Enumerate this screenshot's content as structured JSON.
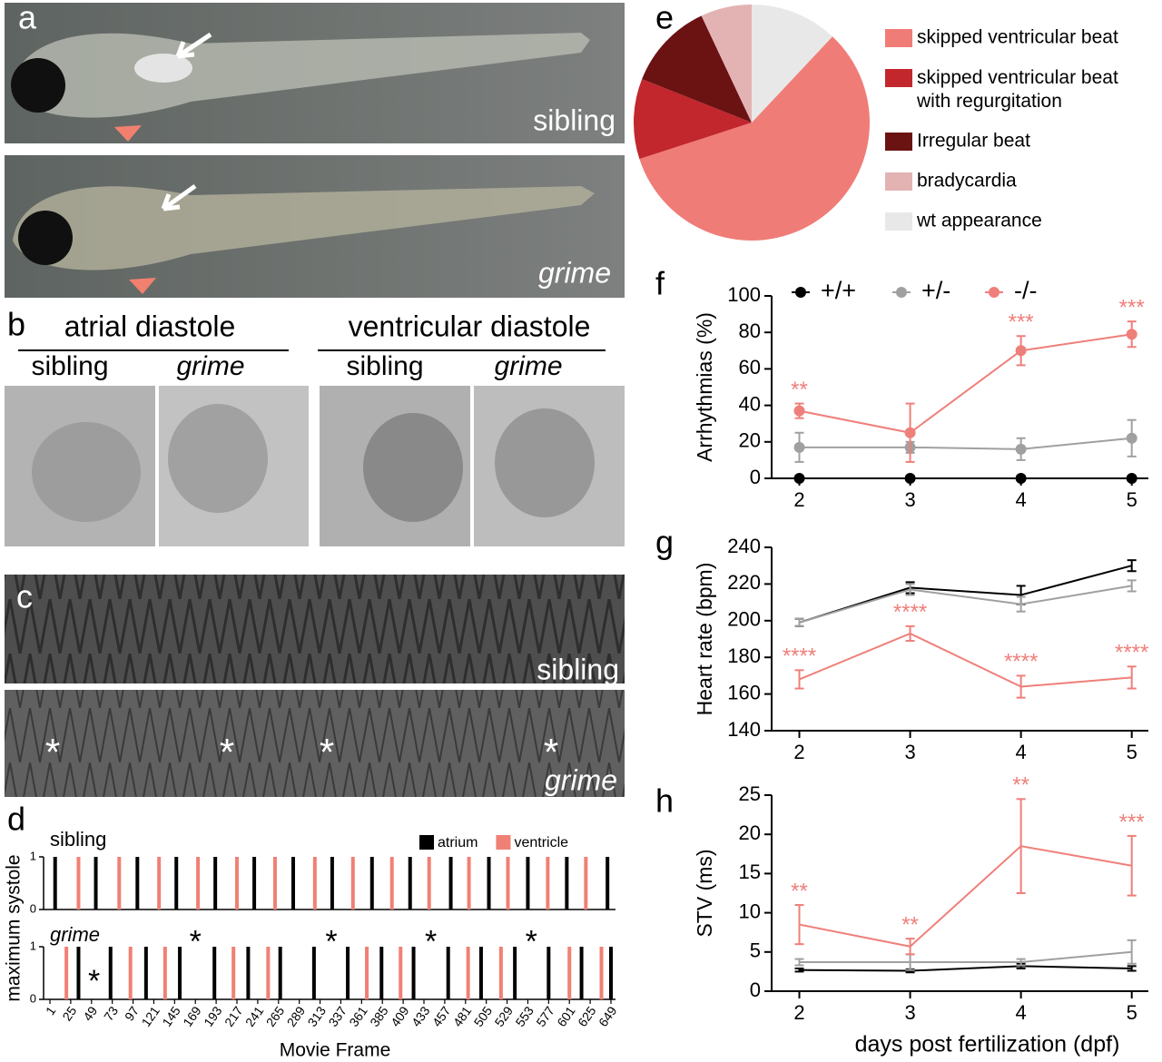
{
  "images": {
    "a": {
      "label": "a",
      "captions": [
        "sibling",
        "grime"
      ]
    },
    "b": {
      "label": "b",
      "groups": [
        {
          "title": "atrial diastole",
          "captions": [
            "sibling",
            "grime"
          ]
        },
        {
          "title": "ventricular diastole",
          "captions": [
            "sibling",
            "grime"
          ]
        }
      ]
    },
    "c": {
      "label": "c",
      "captions": [
        "sibling",
        "grime"
      ],
      "marks": [
        "*",
        "*",
        "*",
        "*"
      ]
    }
  },
  "chart_data": [
    {
      "type": "eventplot",
      "label": "d",
      "ylabel": "maximum systole",
      "xlabel": "Movie Frame",
      "xlim": [
        1,
        649
      ],
      "xticks": [
        1,
        25,
        49,
        73,
        97,
        121,
        145,
        169,
        193,
        217,
        241,
        265,
        289,
        313,
        337,
        361,
        385,
        409,
        433,
        457,
        481,
        505,
        529,
        553,
        577,
        601,
        625,
        649
      ],
      "ylim": [
        0,
        1
      ],
      "yticks": [
        0,
        1
      ],
      "legend": "upper right",
      "series": [
        {
          "name": "atrium",
          "color": "#000000"
        },
        {
          "name": "ventricle",
          "color": "#f08075"
        }
      ],
      "rows": [
        {
          "label": "sibling",
          "events": [
            {
              "x": [
                7,
                54,
                102,
                147,
                192,
                237,
                282,
                327,
                373,
                417,
                464,
                508,
                553,
                598,
                645
              ],
              "values": [
                1,
                1,
                1,
                1,
                1,
                1,
                1,
                1,
                1,
                1,
                1,
                1,
                1,
                1,
                1
              ]
            },
            {
              "x": [
                34,
                81,
                127,
                172,
                217,
                261,
                307,
                351,
                396,
                439,
                485,
                530,
                576,
                620
              ],
              "values": [
                1,
                1,
                1,
                1,
                1,
                1,
                1,
                1,
                1,
                1,
                1,
                1,
                1,
                1
              ]
            }
          ]
        },
        {
          "label": "grime",
          "events": [
            {
              "x": [
                34,
                71,
                112,
                151,
                191,
                230,
                267,
                306,
                345,
                384,
                421,
                461,
                499,
                538,
                577,
                615,
                649
              ],
              "values": [
                1,
                1,
                1,
                1,
                1,
                1,
                1,
                1,
                1,
                1,
                1,
                1,
                1,
                1,
                1,
                1,
                1
              ]
            },
            {
              "x": [
                20,
                94,
                134,
                213,
                253,
                367,
                406,
                484,
                522,
                601,
                638
              ],
              "values": [
                1,
                1,
                1,
                1,
                1,
                1,
                1,
                1,
                1,
                1,
                1
              ]
            }
          ],
          "annotations": [
            {
              "x": 52,
              "y": 0.45,
              "text": "*"
            },
            {
              "x": 169,
              "y": 1.2,
              "text": "*"
            },
            {
              "x": 326,
              "y": 1.2,
              "text": "*"
            },
            {
              "x": 441,
              "y": 1.2,
              "text": "*"
            },
            {
              "x": 557,
              "y": 1.2,
              "text": "*"
            }
          ]
        }
      ]
    },
    {
      "type": "pie",
      "label": "e",
      "startangle": 43.2,
      "legend": "right",
      "categories": [
        "skipped ventricular beat",
        "skipped ventricular beat with regurgitation",
        "Irregular beat",
        "bradycardia",
        "wt appearance"
      ],
      "values": [
        58,
        11,
        12,
        7,
        12
      ],
      "colors": [
        "#f07c78",
        "#c1272d",
        "#6b1213",
        "#e3b3b3",
        "#e8e8e8"
      ]
    },
    {
      "type": "line",
      "label": "f",
      "ylabel": "Arrhythmias (%)",
      "markers": true,
      "legend": "top",
      "x": [
        2,
        3,
        4,
        5
      ],
      "xlim": [
        1.75,
        5.15
      ],
      "xticks": [
        2,
        3,
        4,
        5
      ],
      "ylim": [
        0,
        100
      ],
      "yticks": [
        0,
        20,
        40,
        60,
        80,
        100
      ],
      "series": [
        {
          "name": "+/+",
          "color": "#000000",
          "values": [
            0,
            0,
            0,
            0
          ]
        },
        {
          "name": "+/-",
          "color": "#a0a0a0",
          "values": [
            17,
            17,
            16,
            22
          ],
          "errors": [
            8,
            3,
            6,
            10
          ]
        },
        {
          "name": "-/-",
          "color": "#ef7f7a",
          "values": [
            37,
            25,
            70,
            79
          ],
          "errors": [
            4,
            16,
            8,
            7
          ]
        }
      ],
      "annotations": [
        {
          "x": 2,
          "text": "**"
        },
        {
          "x": 4,
          "text": "***"
        },
        {
          "x": 5,
          "text": "***"
        }
      ]
    },
    {
      "type": "line",
      "label": "g",
      "ylabel": "Heart rate (bpm)",
      "markers": false,
      "x": [
        2,
        3,
        4,
        5
      ],
      "xlim": [
        1.75,
        5.15
      ],
      "xticks": [
        2,
        3,
        4,
        5
      ],
      "ylim": [
        140,
        240
      ],
      "yticks": [
        140,
        160,
        180,
        200,
        220,
        240
      ],
      "series": [
        {
          "color": "#000000",
          "values": [
            199,
            218,
            214,
            230
          ],
          "errors": [
            2,
            3,
            5,
            3
          ]
        },
        {
          "color": "#a0a0a0",
          "values": [
            199,
            217,
            209,
            219
          ],
          "errors": [
            2,
            3,
            4,
            3
          ]
        },
        {
          "color": "#ef7f7a",
          "values": [
            168,
            193,
            164,
            169
          ],
          "errors": [
            5,
            4,
            6,
            6
          ]
        }
      ],
      "annotations": [
        {
          "x": 2,
          "text": "****"
        },
        {
          "x": 3,
          "text": "****"
        },
        {
          "x": 4,
          "text": "****"
        },
        {
          "x": 5,
          "text": "****"
        }
      ]
    },
    {
      "type": "line",
      "label": "h",
      "ylabel": "STV (ms)",
      "xlabel": "days post fertilization (dpf)",
      "markers": false,
      "x": [
        2,
        3,
        4,
        5
      ],
      "xlim": [
        1.75,
        5.15
      ],
      "xticks": [
        2,
        3,
        4,
        5
      ],
      "ylim": [
        0,
        25
      ],
      "yticks": [
        0,
        5,
        10,
        15,
        20,
        25
      ],
      "series": [
        {
          "color": "#000000",
          "values": [
            2.7,
            2.6,
            3.2,
            2.9
          ],
          "errors": [
            0.2,
            0.2,
            0.3,
            0.3
          ]
        },
        {
          "color": "#a0a0a0",
          "values": [
            3.7,
            3.7,
            3.7,
            5.0
          ],
          "errors": [
            0.4,
            1,
            0.4,
            1.5
          ]
        },
        {
          "color": "#ef7f7a",
          "values": [
            8.5,
            5.7,
            18.5,
            16
          ],
          "errors": [
            2.5,
            1,
            6,
            3.8
          ]
        }
      ],
      "annotations": [
        {
          "x": 2,
          "text": "**"
        },
        {
          "x": 3,
          "text": "**"
        },
        {
          "x": 4,
          "text": "**"
        },
        {
          "x": 5,
          "text": "***"
        }
      ]
    }
  ]
}
